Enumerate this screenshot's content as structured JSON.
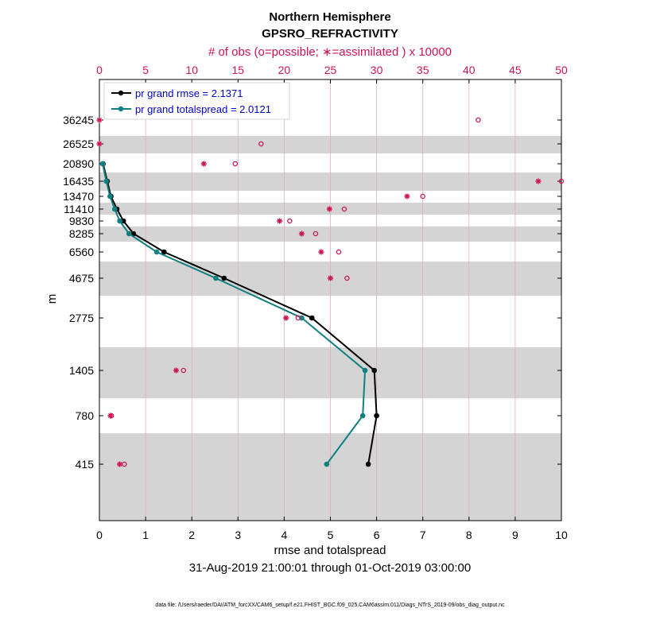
{
  "chart_data": {
    "type": "line",
    "title": "Northern Hemisphere",
    "subtitle": "GPSRO_REFRACTIVITY",
    "xlabel": "rmse and totalspread",
    "ylabel": "m",
    "date_range": "31-Aug-2019 21:00:01 through 01-Oct-2019 03:00:00",
    "top_axis_label": "# of obs (o=possible; ∗=assimilated ) x 10000",
    "footer": "data file: /Users/raeder/DAI/ATM_forcXX/CAM6_setup/f.e21.FHIST_BGC.f09_025.CAM6assim.011/Diags_NTrS_2019-09/obs_diag_output.nc",
    "xlim": [
      0,
      10
    ],
    "x_ticks": [
      "0",
      "1",
      "2",
      "3",
      "4",
      "5",
      "6",
      "7",
      "8",
      "9",
      "10"
    ],
    "top_xlim": [
      0,
      50
    ],
    "top_ticks": [
      "0",
      "5",
      "10",
      "15",
      "20",
      "25",
      "30",
      "35",
      "40",
      "45",
      "50"
    ],
    "levels": [
      36245,
      26525,
      20890,
      16435,
      13470,
      11410,
      9830,
      8285,
      6560,
      4675,
      2775,
      1405,
      780,
      415
    ],
    "level_labels": [
      "36245",
      "26525",
      "20890",
      "16435",
      "13470",
      "11410",
      "9830",
      "8285",
      "6560",
      "4675",
      "2775",
      "1405",
      "780",
      "415"
    ],
    "series": [
      {
        "name": "rmse",
        "legend": "pr grand rmse = 2.1371",
        "color": "#000000",
        "values": [
          null,
          null,
          0.08,
          0.17,
          0.25,
          0.38,
          0.52,
          0.74,
          1.4,
          2.7,
          4.6,
          5.95,
          6.0,
          5.82
        ]
      },
      {
        "name": "totalspread",
        "legend": "pr grand totalspread = 2.0121",
        "color": "#0e8080",
        "values": [
          null,
          null,
          0.07,
          0.15,
          0.23,
          0.33,
          0.44,
          0.64,
          1.24,
          2.52,
          4.38,
          5.75,
          5.7,
          4.92
        ]
      }
    ],
    "obs_possible_x10000": [
      41.0,
      17.5,
      14.7,
      50.0,
      35.0,
      26.5,
      20.6,
      23.4,
      25.9,
      26.8,
      21.5,
      9.1,
      1.3,
      2.7
    ],
    "obs_assimilated_x10000": [
      0.0,
      0.0,
      11.3,
      47.5,
      33.3,
      24.9,
      19.5,
      21.9,
      24.0,
      25.0,
      20.2,
      8.3,
      1.2,
      2.2
    ],
    "colors": {
      "obs": "#cc1456",
      "band": "#d4d4d4",
      "grid": "#e3a6ba",
      "rmse": "#000000",
      "spread": "#0e8080",
      "legend_text": "#0000cc"
    }
  }
}
